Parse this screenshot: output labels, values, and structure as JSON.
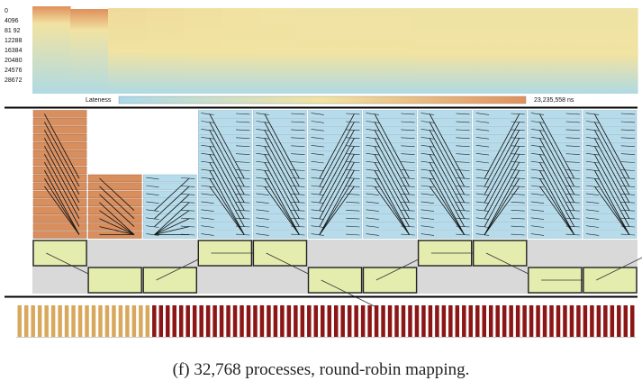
{
  "chart_data": {
    "type": "heatmap",
    "caption": "(f) 32,768 processes, round-robin mapping.",
    "y_tick_labels": [
      "0",
      "4096",
      "81 92",
      "12288",
      "16384",
      "20480",
      "24576",
      "28672"
    ],
    "lateness_legend": {
      "label": "Lateness",
      "max_label": "23,235,558 ns",
      "min_value_ns": 0,
      "max_value_ns": 23235558,
      "color_low": "#a9d9ea",
      "color_mid": "#f1e3a2",
      "color_high": "#e0905c"
    },
    "colors": {
      "late_fill": "#d98e5e",
      "low_fill": "#b6dceb",
      "bin_fill": "#e5edae",
      "bin_stroke": "#222222",
      "bar_dark": "#8c1616",
      "bar_light": "#d8a85c",
      "band_bg": "#d9d9d9",
      "divider": "#000000"
    },
    "timeline_column_lateness": [
      1.0,
      0.85,
      0.15,
      0.12,
      0.1,
      0.08,
      0.06,
      0.05,
      0.05,
      0.05,
      0.04,
      0.04,
      0.04,
      0.04,
      0.04,
      0.04
    ],
    "phase_columns": [
      {
        "lateness": 1.0,
        "rows": 16,
        "bin_level": 0,
        "bin_link": "down"
      },
      {
        "lateness": 1.0,
        "rows": 8,
        "bin_level": 1,
        "bin_link": "none"
      },
      {
        "lateness": 0.0,
        "rows": 8,
        "bin_level": 1,
        "bin_link": "up"
      },
      {
        "lateness": 0.0,
        "rows": 16,
        "bin_level": 0,
        "bin_link": "right"
      },
      {
        "lateness": 0.0,
        "rows": 16,
        "bin_level": 0,
        "bin_link": "down"
      },
      {
        "lateness": 0.0,
        "rows": 16,
        "bin_level": 1,
        "bin_link": "down"
      },
      {
        "lateness": 0.0,
        "rows": 16,
        "bin_level": 1,
        "bin_link": "up"
      },
      {
        "lateness": 0.0,
        "rows": 16,
        "bin_level": 0,
        "bin_link": "right"
      },
      {
        "lateness": 0.0,
        "rows": 16,
        "bin_level": 0,
        "bin_link": "down"
      },
      {
        "lateness": 0.0,
        "rows": 16,
        "bin_level": 1,
        "bin_link": "right"
      },
      {
        "lateness": 0.0,
        "rows": 16,
        "bin_level": 1,
        "bin_link": "up"
      }
    ],
    "bottom_strip": {
      "total_bars": 92,
      "light_bars": 20
    }
  }
}
